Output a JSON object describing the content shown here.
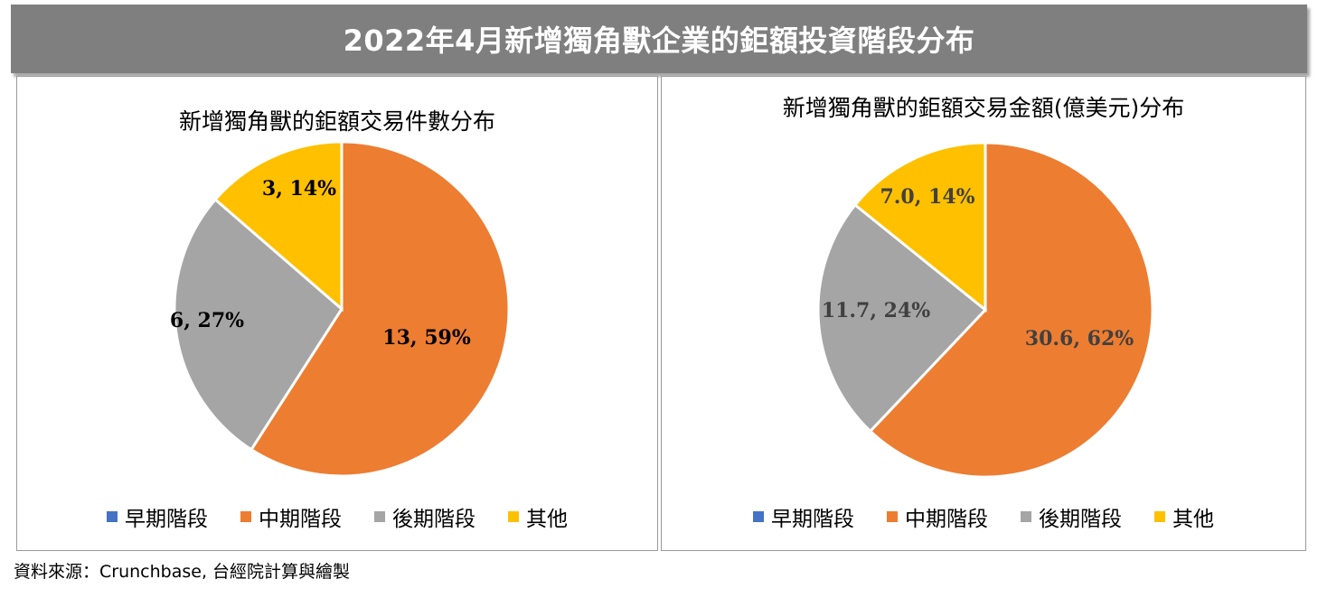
{
  "header": {
    "title": "2022年4月新增獨角獸企業的鉅額投資階段分布"
  },
  "source": "資料來源：Crunchbase, 台經院計算與繪製",
  "colors": {
    "早期階段": "#4472c4",
    "中期階段": "#ed7d31",
    "後期階段": "#a5a5a5",
    "其他": "#ffc000"
  },
  "chart_data": [
    {
      "type": "pie",
      "title": "新增獨角獸的鉅額交易件數分布",
      "categories": [
        "早期階段",
        "中期階段",
        "後期階段",
        "其他"
      ],
      "values": [
        0,
        13,
        6,
        3
      ],
      "percents": [
        0,
        59,
        27,
        14
      ],
      "data_labels": [
        "",
        "13, 59%",
        "6, 27%",
        "3, 14%"
      ],
      "legend": [
        "早期階段",
        "中期階段",
        "後期階段",
        "其他"
      ],
      "legend_position": "bottom"
    },
    {
      "type": "pie",
      "title": "新增獨角獸的鉅額交易金額(億美元)分布",
      "categories": [
        "早期階段",
        "中期階段",
        "後期階段",
        "其他"
      ],
      "values": [
        0,
        30.6,
        11.7,
        7.0
      ],
      "percents": [
        0,
        62,
        24,
        14
      ],
      "data_labels": [
        "",
        "30.6, 62%",
        "11.7, 24%",
        "7.0, 14%"
      ],
      "legend": [
        "早期階段",
        "中期階段",
        "後期階段",
        "其他"
      ],
      "legend_position": "bottom"
    }
  ]
}
